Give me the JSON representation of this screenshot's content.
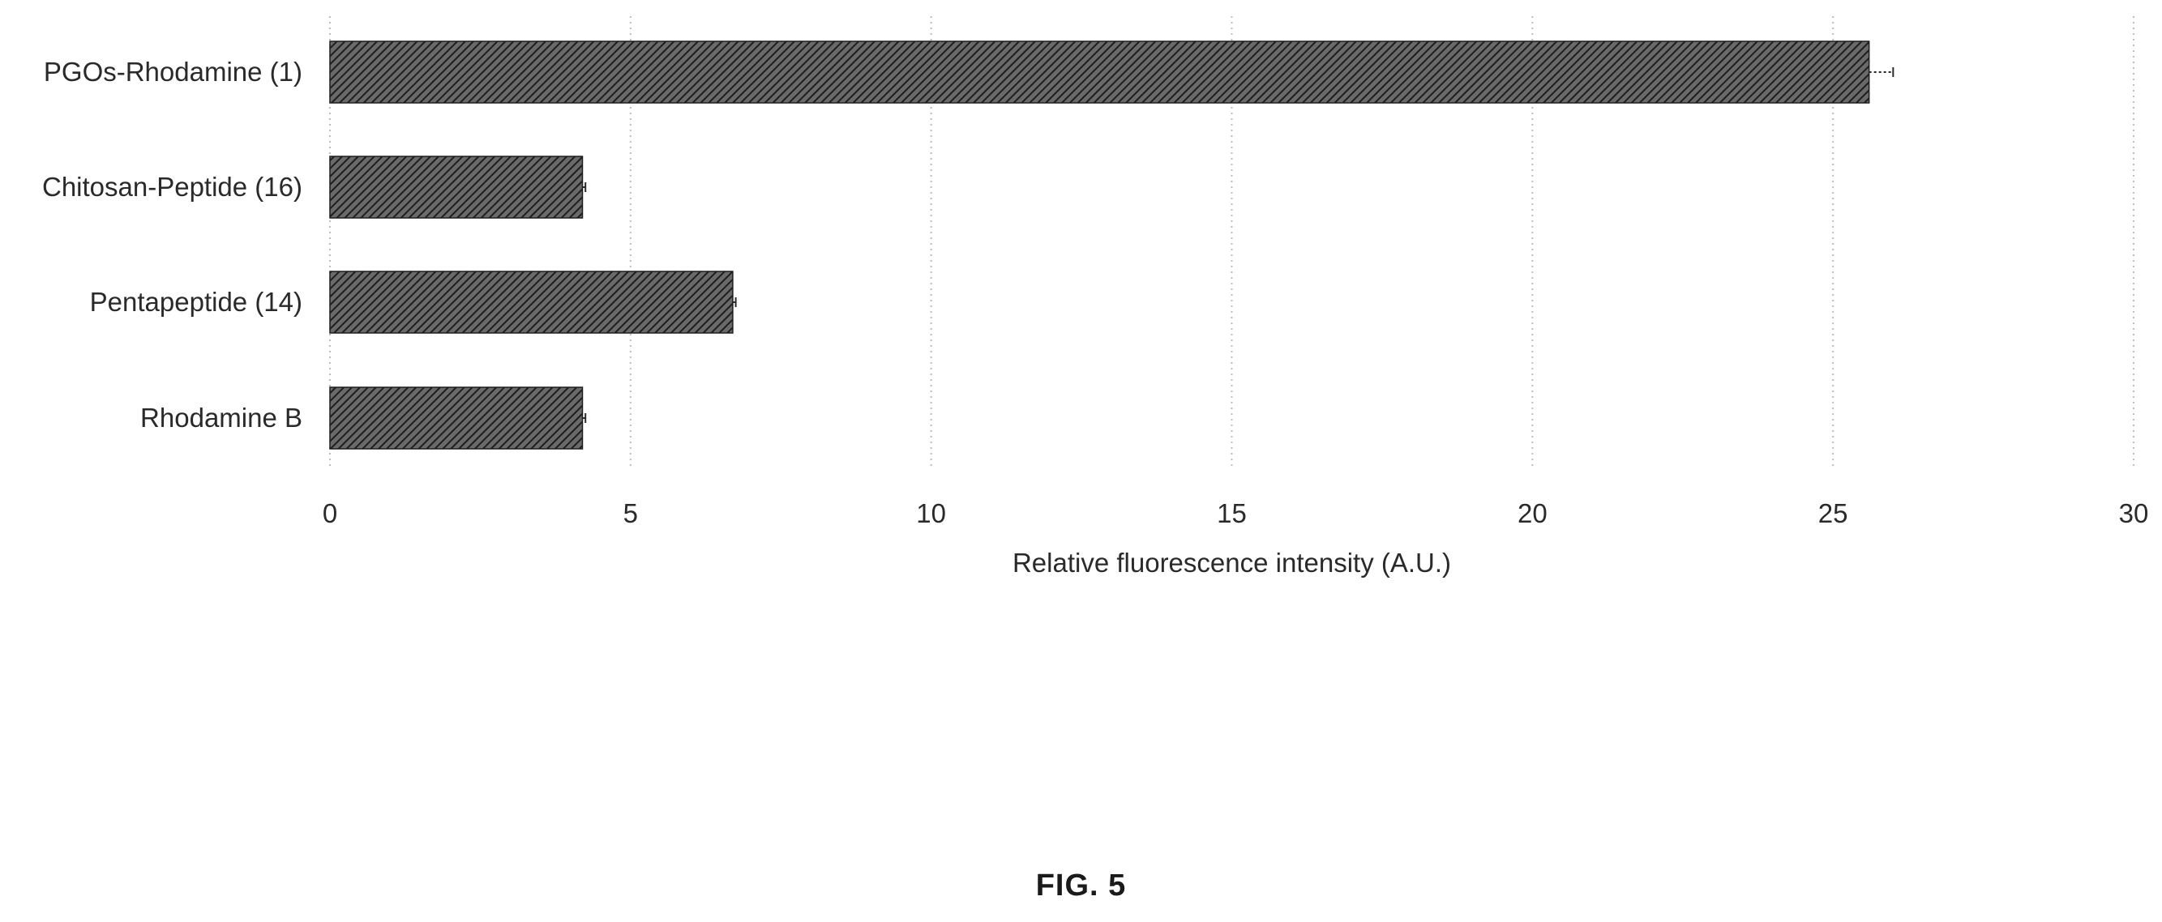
{
  "chart_data": {
    "type": "bar",
    "orientation": "horizontal",
    "categories": [
      "PGOs-Rhodamine (1)",
      "Chitosan-Peptide (16)",
      "Pentapeptide (14)",
      "Rhodamine B"
    ],
    "values": [
      25.6,
      4.2,
      6.7,
      4.2
    ],
    "errors": [
      0.4,
      0.05,
      0.05,
      0.05
    ],
    "xlabel": "Relative fluorescence intensity (A.U.)",
    "ylabel": "",
    "xlim": [
      0,
      30
    ],
    "xticks": [
      "0",
      "5",
      "10",
      "15",
      "20",
      "25",
      "30"
    ],
    "grid": "vertical dotted",
    "bar_pattern": "diagonal hatch",
    "colors": {
      "bar_fill": "#6a6a6a",
      "bar_hatch": "#1e1e1e",
      "grid": "#bdbdbd"
    }
  },
  "caption": "FIG. 5"
}
